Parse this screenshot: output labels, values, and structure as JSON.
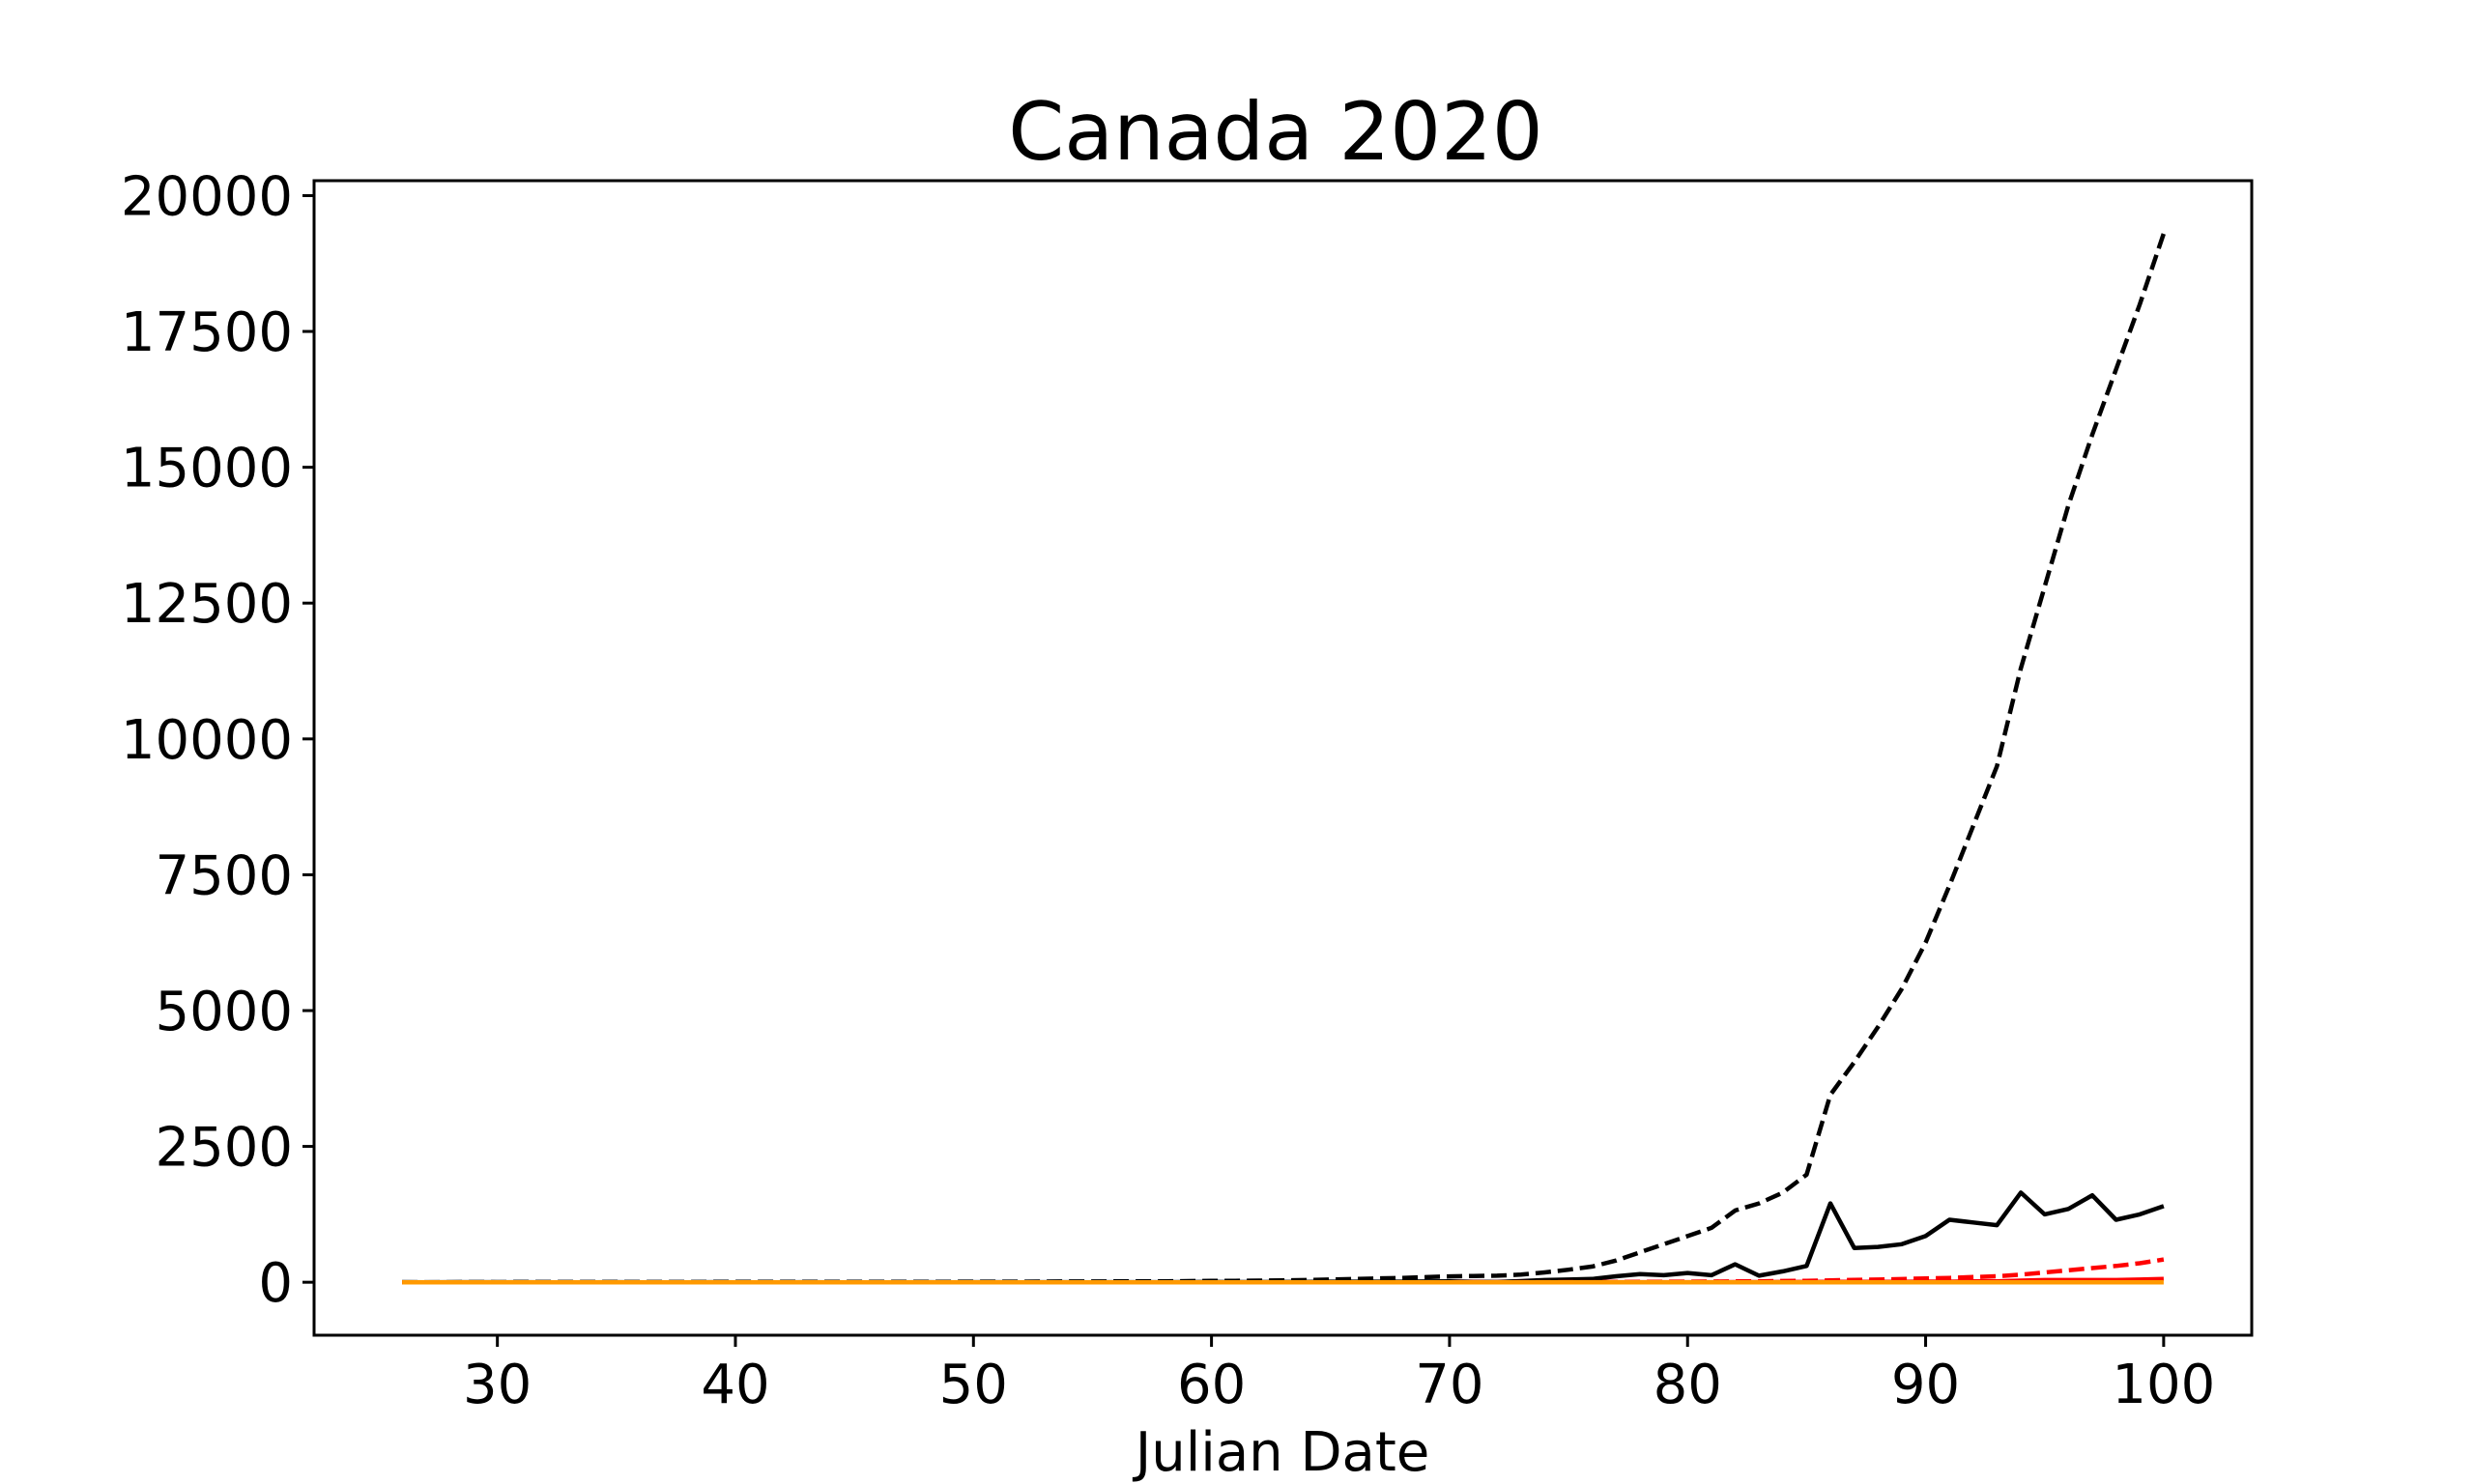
{
  "chart_data": {
    "type": "line",
    "title": "Canada 2020",
    "xlabel": "Julian Date",
    "ylabel": "",
    "xlim": [
      22.3,
      103.7
    ],
    "ylim": [
      -975,
      20275
    ],
    "xticks": [
      30,
      40,
      50,
      60,
      70,
      80,
      90,
      100
    ],
    "yticks": [
      0,
      2500,
      5000,
      7500,
      10000,
      12500,
      15000,
      17500,
      20000
    ],
    "grid": false,
    "legend": "none",
    "x": [
      26,
      27,
      28,
      29,
      30,
      31,
      32,
      33,
      34,
      35,
      36,
      37,
      38,
      39,
      40,
      41,
      42,
      43,
      44,
      45,
      46,
      47,
      48,
      49,
      50,
      51,
      52,
      53,
      54,
      55,
      56,
      57,
      58,
      59,
      60,
      61,
      62,
      63,
      64,
      65,
      66,
      67,
      68,
      69,
      70,
      71,
      72,
      73,
      74,
      75,
      76,
      77,
      78,
      79,
      80,
      81,
      82,
      83,
      84,
      85,
      86,
      87,
      88,
      89,
      90,
      91,
      92,
      93,
      94,
      95,
      96,
      97,
      98,
      99,
      100
    ],
    "series": [
      {
        "color": "#000000",
        "dash": "dashed",
        "values": [
          1,
          1,
          2,
          3,
          3,
          4,
          4,
          4,
          4,
          5,
          5,
          5,
          5,
          7,
          7,
          7,
          7,
          8,
          8,
          8,
          8,
          8,
          9,
          9,
          10,
          11,
          11,
          12,
          14,
          14,
          15,
          16,
          17,
          20,
          24,
          27,
          30,
          35,
          40,
          50,
          60,
          70,
          80,
          93,
          108,
          115,
          120,
          140,
          180,
          230,
          290,
          400,
          550,
          700,
          850,
          1000,
          1320,
          1450,
          1650,
          1980,
          3450,
          4050,
          4700,
          5400,
          6250,
          7300,
          8400,
          9500,
          11300,
          12800,
          14300,
          15600,
          16800,
          18000,
          19300
        ]
      },
      {
        "color": "#000000",
        "dash": "solid",
        "values": [
          1,
          0,
          1,
          1,
          0,
          1,
          0,
          0,
          0,
          1,
          0,
          0,
          0,
          2,
          0,
          0,
          0,
          1,
          0,
          0,
          0,
          0,
          1,
          0,
          1,
          1,
          0,
          1,
          2,
          0,
          1,
          1,
          1,
          3,
          4,
          3,
          3,
          5,
          5,
          10,
          10,
          10,
          10,
          13,
          15,
          7,
          5,
          20,
          40,
          50,
          60,
          110,
          150,
          130,
          170,
          130,
          330,
          120,
          200,
          300,
          1450,
          630,
          650,
          700,
          850,
          1150,
          1100,
          1050,
          1650,
          1250,
          1350,
          1600,
          1150,
          1250,
          1400
        ]
      },
      {
        "color": "#ff0000",
        "dash": "dashed",
        "values": [
          0,
          0,
          0,
          0,
          0,
          0,
          0,
          0,
          0,
          0,
          0,
          0,
          0,
          0,
          0,
          0,
          0,
          0,
          0,
          0,
          0,
          0,
          0,
          0,
          0,
          0,
          0,
          0,
          0,
          0,
          0,
          0,
          0,
          0,
          0,
          0,
          0,
          0,
          0,
          0,
          0,
          0,
          0,
          0,
          0,
          1,
          1,
          1,
          1,
          2,
          2,
          4,
          6,
          8,
          10,
          12,
          15,
          18,
          22,
          26,
          35,
          42,
          50,
          58,
          70,
          80,
          95,
          110,
          140,
          180,
          220,
          260,
          300,
          350,
          420
        ]
      },
      {
        "color": "#ff0000",
        "dash": "solid",
        "values": [
          0,
          0,
          0,
          0,
          0,
          0,
          0,
          0,
          0,
          0,
          0,
          0,
          0,
          0,
          0,
          0,
          0,
          0,
          0,
          0,
          0,
          0,
          0,
          0,
          0,
          0,
          0,
          0,
          0,
          0,
          0,
          0,
          0,
          0,
          0,
          0,
          0,
          0,
          0,
          0,
          0,
          0,
          0,
          0,
          0,
          1,
          0,
          0,
          0,
          1,
          0,
          2,
          2,
          2,
          2,
          2,
          3,
          3,
          4,
          4,
          9,
          7,
          8,
          8,
          12,
          10,
          15,
          15,
          30,
          40,
          40,
          40,
          40,
          50,
          60
        ]
      },
      {
        "color": "#ff9900",
        "dash": "solid",
        "values": [
          0,
          0,
          0,
          0,
          0,
          0,
          0,
          0,
          0,
          0,
          0,
          0,
          0,
          0,
          0,
          0,
          0,
          0,
          0,
          0,
          0,
          0,
          0,
          0,
          0,
          0,
          0,
          0,
          0,
          0,
          0,
          0,
          0,
          0,
          0,
          0,
          0,
          0,
          0,
          0,
          0,
          0,
          0,
          0,
          0,
          0,
          0,
          0,
          0,
          0,
          0,
          0,
          0,
          0,
          0,
          0,
          0,
          0,
          0,
          0,
          0,
          0,
          0,
          0,
          0,
          0,
          0,
          0,
          0,
          0,
          0,
          0,
          0,
          0,
          0
        ]
      }
    ]
  }
}
